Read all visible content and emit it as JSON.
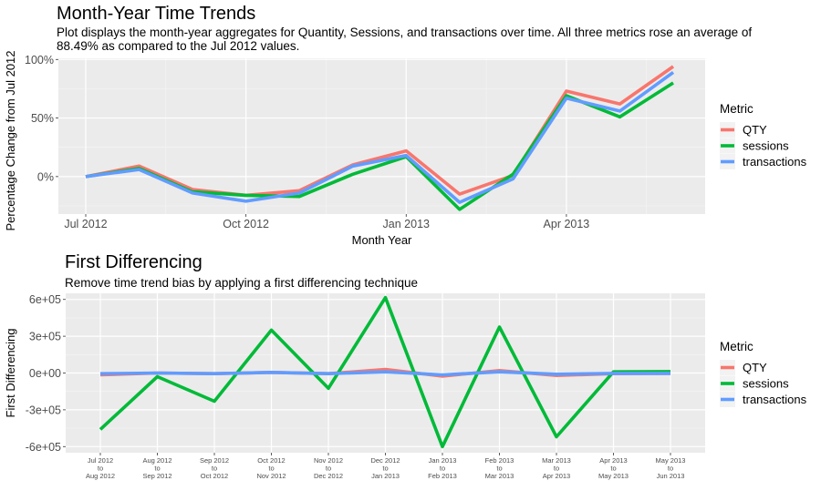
{
  "chart_data": [
    {
      "type": "line",
      "title": "Month-Year Time Trends",
      "subtitle_lines": [
        "Plot displays the month-year aggregates for Quantity, Sessions, and transactions over time. All three metrics rose an average of",
        " 88.49% as compared to the Jul 2012 values."
      ],
      "xlabel": "Month Year",
      "ylabel": "Percentage Change from Jul 2012",
      "x": [
        "2012-07",
        "2012-08",
        "2012-09",
        "2012-10",
        "2012-11",
        "2012-12",
        "2013-01",
        "2013-02",
        "2013-03",
        "2013-04",
        "2013-05",
        "2013-06"
      ],
      "x_ticks": [
        {
          "x": "2012-07",
          "label": "Jul 2012"
        },
        {
          "x": "2012-10",
          "label": "Oct 2012"
        },
        {
          "x": "2013-01",
          "label": "Jan 2013"
        },
        {
          "x": "2013-04",
          "label": "Apr 2013"
        }
      ],
      "y_ticks": [
        {
          "value": 0,
          "label": "0%"
        },
        {
          "value": 50,
          "label": "50%"
        },
        {
          "value": 100,
          "label": "100%"
        }
      ],
      "ylim": [
        -32,
        101
      ],
      "grid": true,
      "legend_position": "right",
      "legend_title": "Metric",
      "series": [
        {
          "name": "QTY",
          "color": "#F8766D",
          "values": [
            0,
            9,
            -11,
            -16,
            -12,
            10,
            22,
            -15,
            1,
            73,
            62,
            94
          ]
        },
        {
          "name": "sessions",
          "color": "#00BA38",
          "values": [
            0,
            7,
            -13,
            -16,
            -17,
            2,
            17,
            -28,
            2,
            69,
            51,
            80
          ]
        },
        {
          "name": "transactions",
          "color": "#619CFF",
          "values": [
            0,
            6,
            -14,
            -21,
            -14,
            9,
            18,
            -22,
            -2,
            67,
            56,
            89
          ]
        }
      ]
    },
    {
      "type": "line",
      "title": "First Differencing",
      "subtitle_lines": [
        "Remove time trend bias by applying a first differencing technique"
      ],
      "xlabel": "",
      "ylabel": "First Differencing",
      "categories": [
        [
          "Jul 2012",
          "to",
          "Aug 2012"
        ],
        [
          "Aug 2012",
          "to",
          "Sep 2012"
        ],
        [
          "Sep 2012",
          "to",
          "Oct 2012"
        ],
        [
          "Oct 2012",
          "to",
          "Nov 2012"
        ],
        [
          "Nov 2012",
          "to",
          "Dec 2012"
        ],
        [
          "Dec 2012",
          "to",
          "Jan 2013"
        ],
        [
          "Jan 2013",
          "to",
          "Feb 2013"
        ],
        [
          "Feb 2013",
          "to",
          "Mar 2013"
        ],
        [
          "Mar 2013",
          "to",
          "Apr 2013"
        ],
        [
          "Apr 2013",
          "to",
          "May 2013"
        ],
        [
          "May 2013",
          "to",
          "Jun 2013"
        ]
      ],
      "y_ticks": [
        {
          "value": -600000,
          "label": "-6e+05"
        },
        {
          "value": -300000,
          "label": "-3e+05"
        },
        {
          "value": 0,
          "label": "0e+00"
        },
        {
          "value": 300000,
          "label": "3e+05"
        },
        {
          "value": 600000,
          "label": "6e+05"
        }
      ],
      "ylim": [
        -650000,
        650000
      ],
      "grid": true,
      "legend_position": "right",
      "legend_title": "Metric",
      "series": [
        {
          "name": "QTY",
          "color": "#F8766D",
          "values": [
            -15000,
            0,
            -5000,
            5000,
            -5000,
            30000,
            -25000,
            20000,
            -20000,
            -5000,
            -3000
          ]
        },
        {
          "name": "sessions",
          "color": "#00BA38",
          "values": [
            -460000,
            -30000,
            -230000,
            350000,
            -125000,
            615000,
            -600000,
            375000,
            -520000,
            10000,
            12000
          ]
        },
        {
          "name": "transactions",
          "color": "#619CFF",
          "values": [
            -5000,
            0,
            -5000,
            5000,
            -5000,
            10000,
            -15000,
            10000,
            -10000,
            -3000,
            -3000
          ]
        }
      ]
    }
  ]
}
